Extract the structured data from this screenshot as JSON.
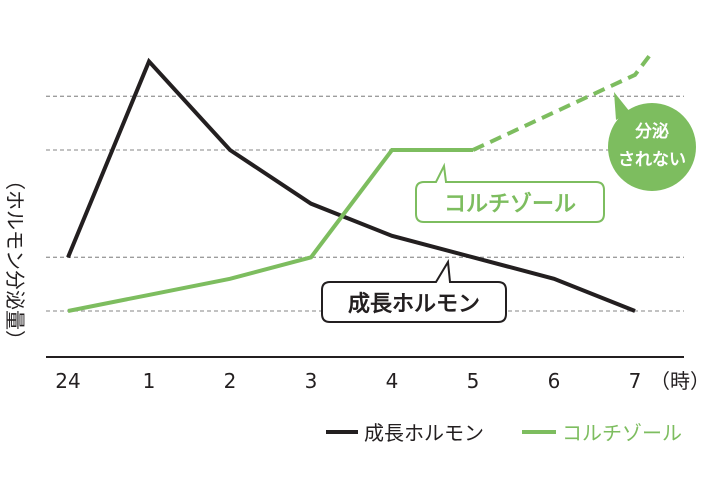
{
  "chart_data": {
    "type": "line",
    "categories": [
      "24",
      "1",
      "2",
      "3",
      "4",
      "5",
      "6",
      "7"
    ],
    "x_unit": "（時）",
    "ylabel": "（ホルモン分泌量）",
    "ylim": [
      0,
      10
    ],
    "grid_values": [
      1.7,
      3.7,
      7.7,
      9.7
    ],
    "grid": true,
    "legend_position": "bottom-right",
    "series": [
      {
        "name": "成長ホルモン",
        "color": "#231f20",
        "values": [
          3.7,
          11.0,
          7.7,
          5.7,
          4.5,
          3.7,
          2.9,
          1.7
        ]
      },
      {
        "name": "コルチゾール",
        "color": "#7dbd5f",
        "values": [
          1.7,
          2.3,
          2.9,
          3.7,
          7.7,
          7.7,
          null,
          null
        ],
        "dashed_values": [
          null,
          null,
          null,
          null,
          null,
          7.7,
          9.1,
          10.5,
          11.3
        ],
        "dashed_x": [
          0,
          0,
          0,
          0,
          0,
          5,
          6,
          7,
          7.2
        ]
      }
    ],
    "annotations": {
      "cortisol_callout": "コルチゾール",
      "gh_callout": "成長ホルモン",
      "badge_line1": "分泌",
      "badge_line2": "されない"
    }
  }
}
